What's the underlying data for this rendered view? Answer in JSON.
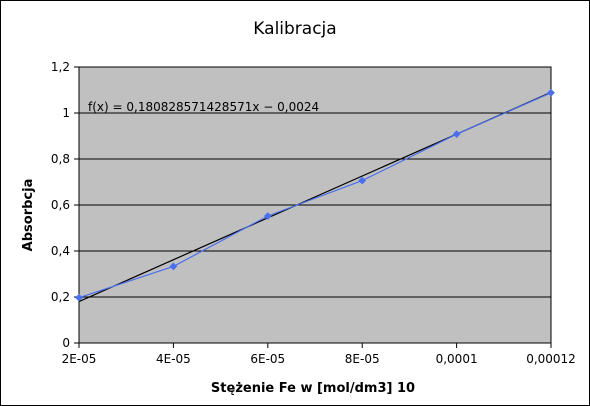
{
  "chart_data": {
    "type": "scatter",
    "title": "Kalibracja",
    "xlabel": "Stężenie Fe w [mol/dm3]  10",
    "ylabel": "Absorbcja",
    "xlim": [
      2e-05,
      0.00012
    ],
    "ylim": [
      0,
      1.2
    ],
    "x_ticks": [
      2e-05,
      4e-05,
      6e-05,
      8e-05,
      0.0001,
      0.00012
    ],
    "x_tick_labels": [
      "2E-05",
      "4E-05",
      "6E-05",
      "8E-05",
      "0,0001",
      "0,00012"
    ],
    "y_ticks": [
      0,
      0.2,
      0.4,
      0.6,
      0.8,
      1,
      1.2
    ],
    "y_tick_labels": [
      "0",
      "0,2",
      "0,4",
      "0,6",
      "0,8",
      "1",
      "1,2"
    ],
    "grid": "horizontal",
    "plot_background": "#c0c0c0",
    "series": [
      {
        "color": "#4a6ef0",
        "x": [
          2e-05,
          4e-05,
          6e-05,
          8e-05,
          0.0001,
          0.00012
        ],
        "y": [
          0.197,
          0.333,
          0.552,
          0.706,
          0.908,
          1.088
        ]
      }
    ],
    "trendline": {
      "equation": "f(x) = 0,180828571428571x − 0,0024",
      "y_start": 0.18,
      "y_end": 1.09,
      "color": "#000000"
    }
  }
}
